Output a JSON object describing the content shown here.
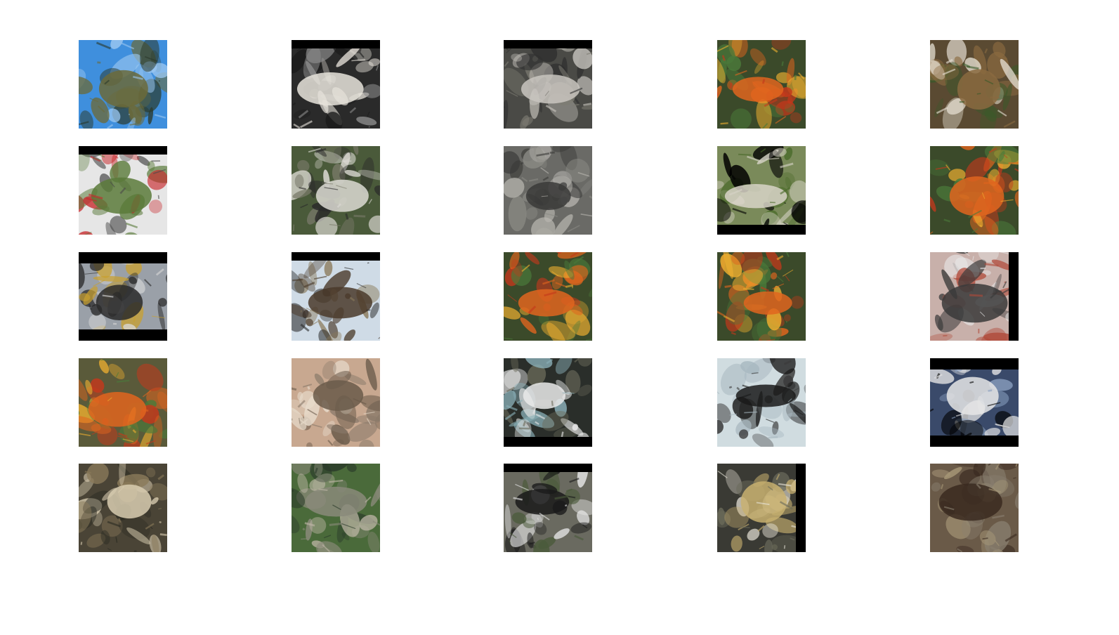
{
  "figure": {
    "background": "#ffffff",
    "rows": 5,
    "cols": 5,
    "samples": [
      {
        "scene": "blue-sky-blob",
        "bg": "#3f8fdd",
        "accents": [
          "#6b6a3a",
          "#2b3a2c",
          "#9bc7f0"
        ],
        "letterbox": "none"
      },
      {
        "scene": "white-object-dark",
        "bg": "#2a2a2a",
        "accents": [
          "#e8e4dc",
          "#8a8a8a",
          "#1a1a1a"
        ],
        "letterbox": "top"
      },
      {
        "scene": "grey-figure-reclining",
        "bg": "#4a4a46",
        "accents": [
          "#c9c6bf",
          "#2f2f2f",
          "#7d7b72"
        ],
        "letterbox": "top"
      },
      {
        "scene": "colorful-clutter",
        "bg": "#3b4a2a",
        "accents": [
          "#e0651e",
          "#c5381b",
          "#f0b030",
          "#4a7a3a"
        ],
        "letterbox": "none"
      },
      {
        "scene": "brown-foliage",
        "bg": "#5a4a32",
        "accents": [
          "#8a6a40",
          "#e8e2d5",
          "#3a5a2a"
        ],
        "letterbox": "none"
      },
      {
        "scene": "vehicle-on-grass",
        "bg": "#e6e6e6",
        "accents": [
          "#5a7a3a",
          "#c8262a",
          "#4a4a4a"
        ],
        "letterbox": "top"
      },
      {
        "scene": "white-box-green",
        "bg": "#4a5a3a",
        "accents": [
          "#dcdad4",
          "#7a7a6a",
          "#2a2a2a"
        ],
        "letterbox": "none"
      },
      {
        "scene": "grey-structure",
        "bg": "#6a6a66",
        "accents": [
          "#3a3a38",
          "#b8b6b0",
          "#8a8a84"
        ],
        "letterbox": "none"
      },
      {
        "scene": "outdoor-grass-black-bottom",
        "bg": "#7a8a5a",
        "accents": [
          "#d8d4c8",
          "#4a6a2a",
          "#000000"
        ],
        "letterbox": "bottom"
      },
      {
        "scene": "colorful-clutter",
        "bg": "#3b4a2a",
        "accents": [
          "#e0651e",
          "#c5381b",
          "#f0b030",
          "#4a7a3a"
        ],
        "letterbox": "none"
      },
      {
        "scene": "dark-object-grey",
        "bg": "#9aa0a8",
        "accents": [
          "#2a2a2a",
          "#c8a030",
          "#d8d8d8"
        ],
        "letterbox": "both"
      },
      {
        "scene": "pale-sky-birds",
        "bg": "#cfdbe6",
        "accents": [
          "#4a3a2a",
          "#8a7a5a",
          "#2a2a2a"
        ],
        "letterbox": "top"
      },
      {
        "scene": "colorful-clutter",
        "bg": "#3b4a2a",
        "accents": [
          "#e0651e",
          "#c5381b",
          "#f0b030",
          "#4a7a3a"
        ],
        "letterbox": "none"
      },
      {
        "scene": "colorful-clutter",
        "bg": "#3b4a2a",
        "accents": [
          "#e0651e",
          "#c5381b",
          "#f0b030",
          "#4a7a3a"
        ],
        "letterbox": "none"
      },
      {
        "scene": "metallic-curve",
        "bg": "#c8b0aa",
        "accents": [
          "#3a3a3a",
          "#e8e8e8",
          "#b04a3a"
        ],
        "letterbox": "right"
      },
      {
        "scene": "colorful-clutter",
        "bg": "#5a5a3a",
        "accents": [
          "#e0651e",
          "#c5381b",
          "#f0b030",
          "#4a7a3a"
        ],
        "letterbox": "none"
      },
      {
        "scene": "beige-columns",
        "bg": "#c8a890",
        "accents": [
          "#6a5a4a",
          "#e8dccc",
          "#8a7a6a"
        ],
        "letterbox": "none"
      },
      {
        "scene": "white-bird-dark",
        "bg": "#2a2e2a",
        "accents": [
          "#eaeaea",
          "#8ab0b8",
          "#6a6a5a"
        ],
        "letterbox": "bottom"
      },
      {
        "scene": "black-shape-pale",
        "bg": "#d0dce0",
        "accents": [
          "#1a1a1a",
          "#3a3a3a",
          "#a8b8c0"
        ],
        "letterbox": "none"
      },
      {
        "scene": "white-object-blue",
        "bg": "#3a4a6a",
        "accents": [
          "#e6e6e6",
          "#8aa0c0",
          "#000000"
        ],
        "letterbox": "both"
      },
      {
        "scene": "cream-figure-dark",
        "bg": "#4a4436",
        "accents": [
          "#d8ccb0",
          "#2a2a22",
          "#8a7a5a"
        ],
        "letterbox": "none"
      },
      {
        "scene": "green-textured",
        "bg": "#4a6a3a",
        "accents": [
          "#8a8a7a",
          "#2a3a2a",
          "#c0b8a8"
        ],
        "letterbox": "none"
      },
      {
        "scene": "dark-animal",
        "bg": "#6a6a60",
        "accents": [
          "#1a1a1a",
          "#e8e8e8",
          "#4a5a3a"
        ],
        "letterbox": "top"
      },
      {
        "scene": "dark-vehicle-yellow",
        "bg": "#3a3a34",
        "accents": [
          "#c8b070",
          "#e8e4d8",
          "#6a6a5a"
        ],
        "letterbox": "right"
      },
      {
        "scene": "brown-textured",
        "bg": "#6a5a48",
        "accents": [
          "#3a2a20",
          "#a89878",
          "#8a8070"
        ],
        "letterbox": "none"
      }
    ]
  }
}
